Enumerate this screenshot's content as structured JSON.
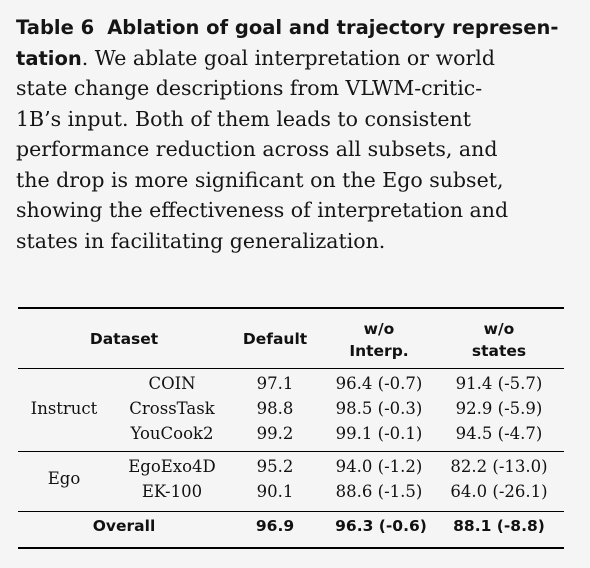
{
  "caption": {
    "label": "Table 6",
    "title_line1": "Ablation of goal and trajectory represen-",
    "title_line2_bold": "tation",
    "line2_rest": ". We ablate goal interpretation or world",
    "line3": "state change descriptions from VLWM-critic-",
    "line4": "1B’s input. Both of them leads to consistent",
    "line5": "performance reduction across all subsets, and",
    "line6": "the drop is more significant on the Ego subset,",
    "line7": "showing the effectiveness of interpretation and",
    "line8": "states in facilitating generalization."
  },
  "table": {
    "headers": {
      "dataset": "Dataset",
      "default": "Default",
      "interp_top": "w/o",
      "interp_bottom": "Interp.",
      "states_top": "w/o",
      "states_bottom": "states"
    },
    "groups": {
      "instruct": "Instruct",
      "ego": "Ego"
    },
    "rows": [
      {
        "name": "COIN",
        "default": "97.1",
        "interp": "96.4 (-0.7)",
        "states": "91.4 (-5.7)"
      },
      {
        "name": "CrossTask",
        "default": "98.8",
        "interp": "98.5 (-0.3)",
        "states": "92.9 (-5.9)"
      },
      {
        "name": "YouCook2",
        "default": "99.2",
        "interp": "99.1 (-0.1)",
        "states": "94.5 (-4.7)"
      },
      {
        "name": "EgoExo4D",
        "default": "95.2",
        "interp": "94.0 (-1.2)",
        "states": "82.2 (-13.0)"
      },
      {
        "name": "EK-100",
        "default": "90.1",
        "interp": "88.6 (-1.5)",
        "states": "64.0 (-26.1)"
      }
    ],
    "overall": {
      "label": "Overall",
      "default": "96.9",
      "interp": "96.3 (-0.6)",
      "states": "88.1 (-8.8)"
    }
  }
}
